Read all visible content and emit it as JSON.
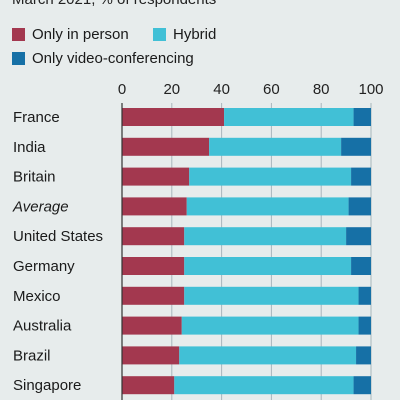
{
  "subtitle": "March 2021, % of respondents",
  "colors": {
    "in_person": "#a3384f",
    "hybrid": "#41c0d6",
    "video": "#1670a6",
    "grid": "#aab7bd"
  },
  "chart_data": {
    "type": "bar",
    "orientation": "horizontal",
    "stacked": true,
    "categories": [
      "France",
      "India",
      "Britain",
      "Average",
      "United States",
      "Germany",
      "Mexico",
      "Australia",
      "Brazil",
      "Singapore"
    ],
    "category_styles": [
      "normal",
      "normal",
      "normal",
      "italic",
      "normal",
      "normal",
      "normal",
      "normal",
      "normal",
      "normal"
    ],
    "series": [
      {
        "name": "Only in person",
        "values": [
          41,
          35,
          27,
          26,
          25,
          25,
          25,
          24,
          23,
          21
        ]
      },
      {
        "name": "Hybrid",
        "values": [
          52,
          53,
          65,
          65,
          65,
          67,
          70,
          71,
          71,
          72
        ]
      },
      {
        "name": "Only video-conferencing",
        "values": [
          7,
          12,
          8,
          9,
          10,
          8,
          5,
          5,
          6,
          7
        ]
      }
    ],
    "xlim": [
      0,
      100
    ],
    "xticks": [
      0,
      20,
      40,
      60,
      80,
      100
    ],
    "x_axis_position": "top",
    "grid": true,
    "legend_position": "top"
  }
}
